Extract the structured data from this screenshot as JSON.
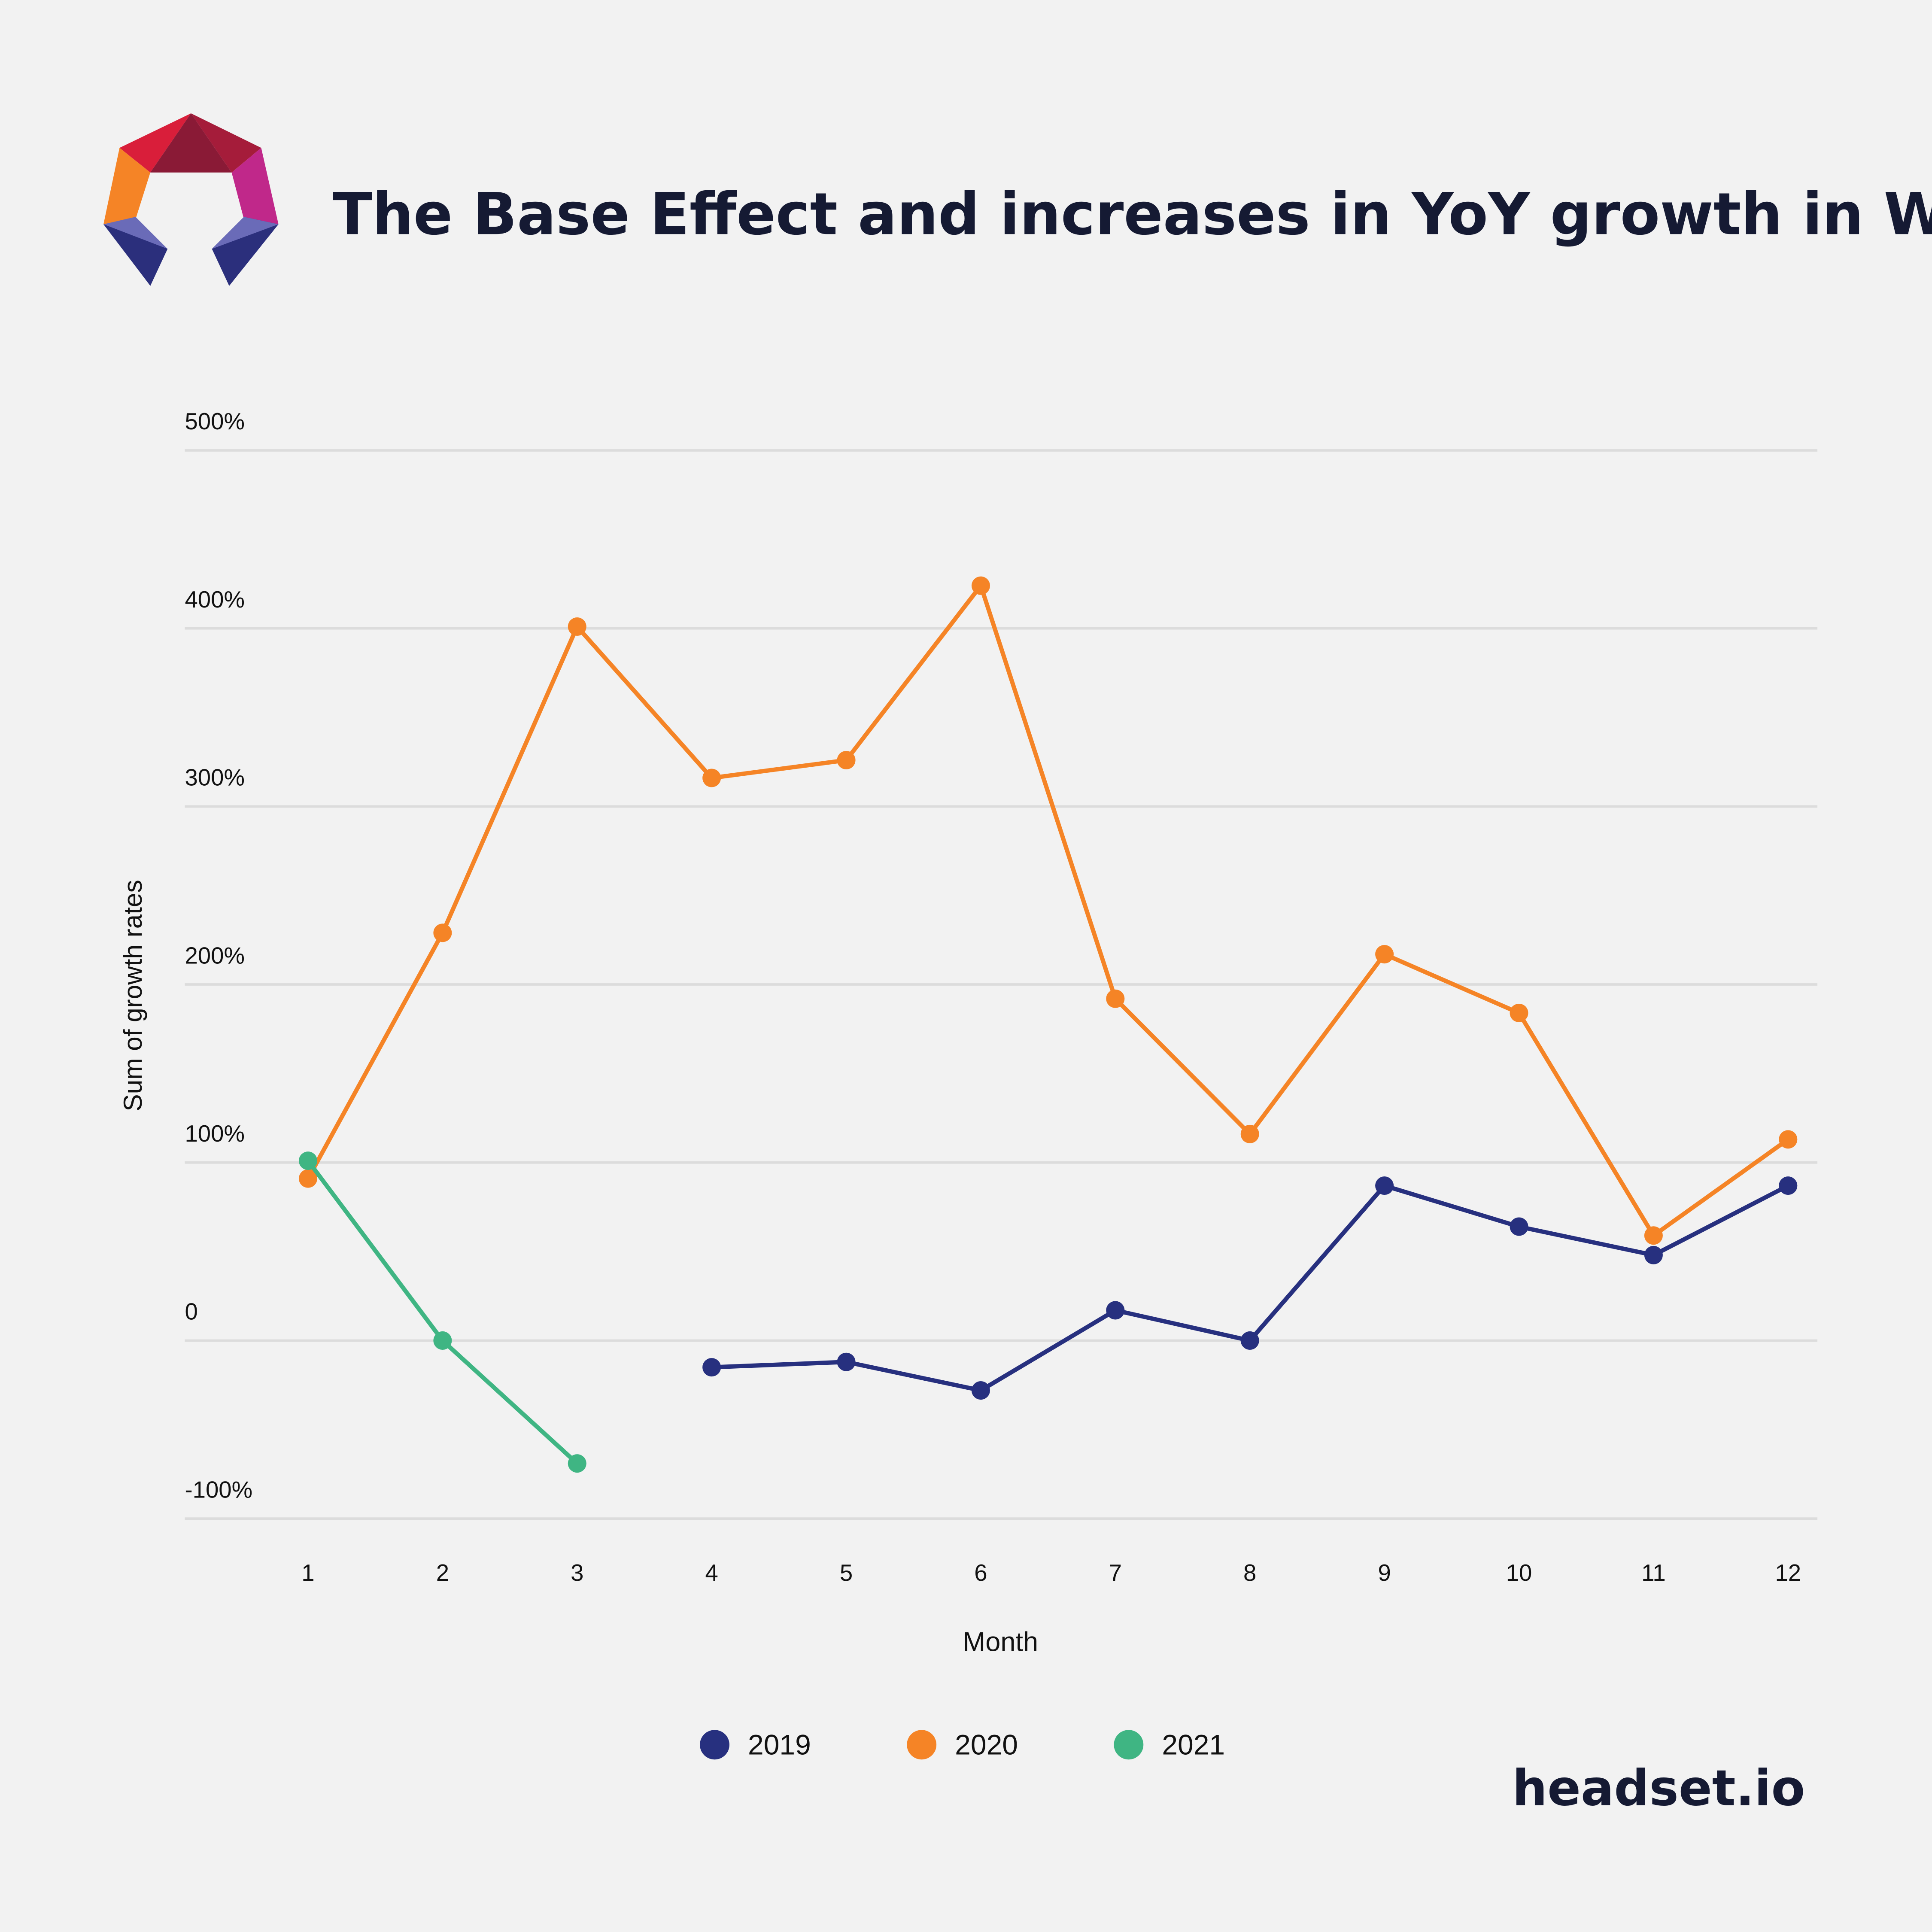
{
  "header": {
    "title": "The Base Effect and increases in YoY growth in WA"
  },
  "brand": {
    "footer": "headset.io"
  },
  "chart_data": {
    "type": "line",
    "title": "The Base Effect and increases in YoY growth in WA",
    "xlabel": "Month",
    "ylabel": "Sum of growth rates",
    "x": [
      1,
      2,
      3,
      4,
      5,
      6,
      7,
      8,
      9,
      10,
      11,
      12
    ],
    "x_tick_labels": [
      "1",
      "2",
      "3",
      "4",
      "5",
      "6",
      "7",
      "8",
      "9",
      "10",
      "11",
      "12"
    ],
    "y_tick_labels": [
      "500%",
      "400%",
      "300%",
      "200%",
      "100%",
      "0",
      "-100%"
    ],
    "y_ticks": [
      500,
      400,
      300,
      200,
      100,
      0,
      -100
    ],
    "ylim": [
      -100,
      500
    ],
    "grid": true,
    "legend_position": "bottom-center",
    "series": [
      {
        "name": "2019",
        "color": "#27307f",
        "values": [
          null,
          null,
          null,
          -15,
          -12,
          -28,
          17,
          0,
          87,
          64,
          48,
          87
        ]
      },
      {
        "name": "2020",
        "color": "#f58426",
        "values": [
          91,
          229,
          401,
          316,
          326,
          424,
          192,
          116,
          217,
          184,
          59,
          113
        ]
      },
      {
        "name": "2021",
        "color": "#3fb583",
        "values": [
          101,
          0,
          -69,
          null,
          null,
          null,
          null,
          null,
          null,
          null,
          null,
          null
        ]
      }
    ]
  }
}
